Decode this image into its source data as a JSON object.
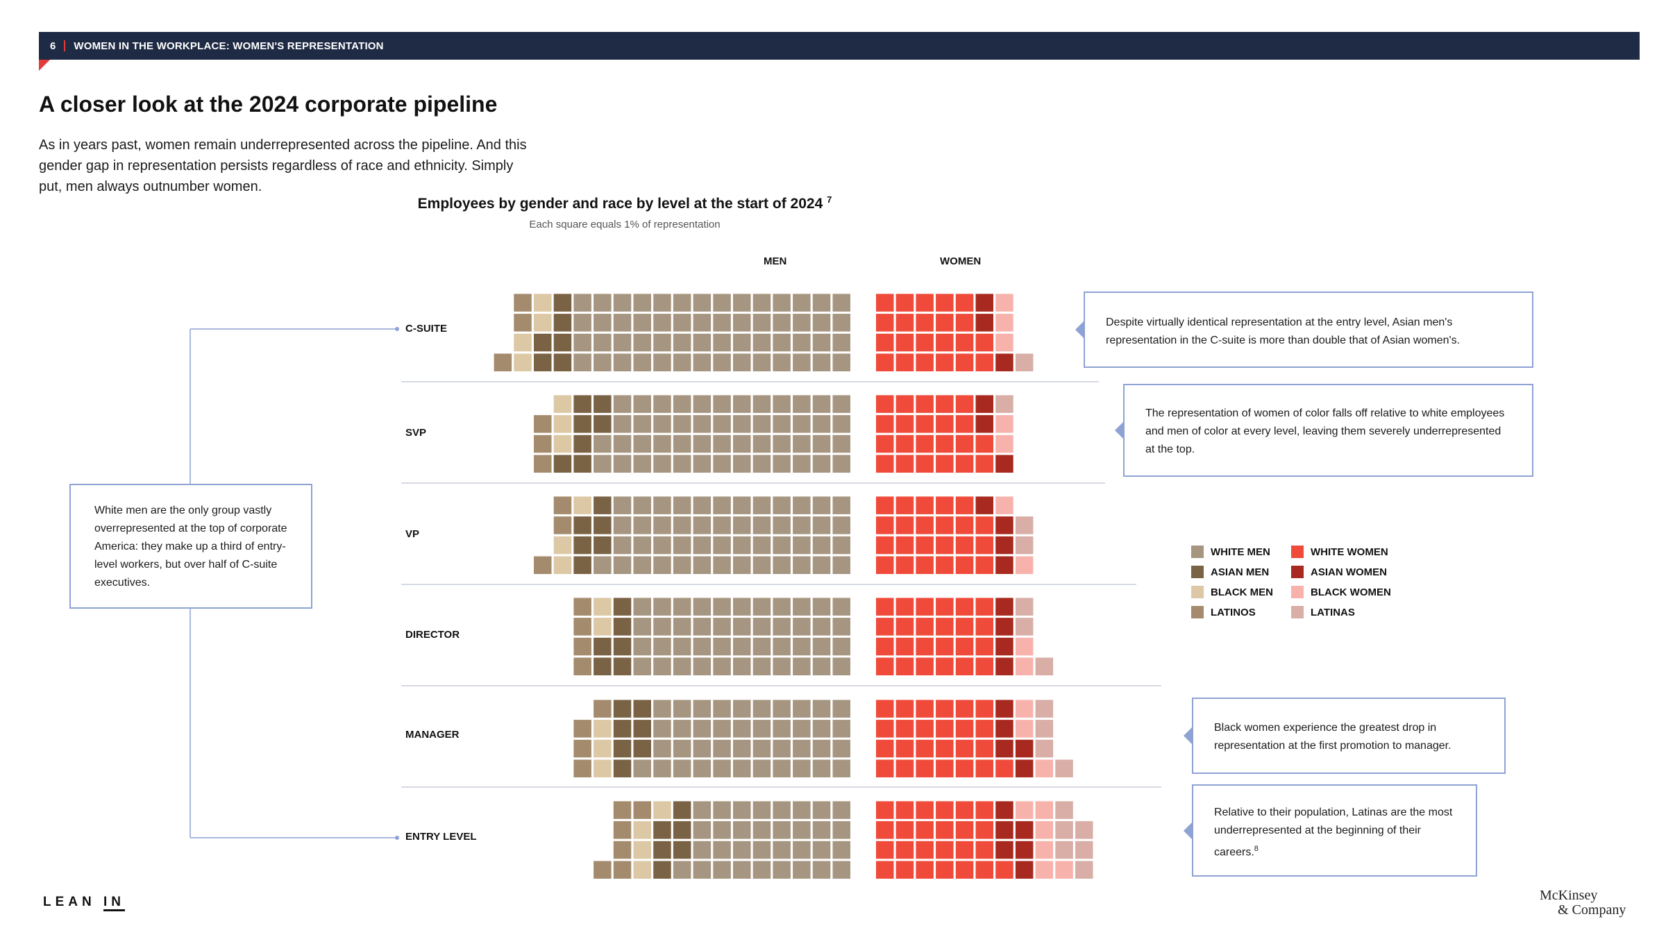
{
  "header": {
    "page_number": "6",
    "title": "WOMEN IN THE WORKPLACE: WOMEN'S REPRESENTATION"
  },
  "page_title": "A closer look at the 2024 corporate pipeline",
  "intro": "As in years past, women remain underrepresented across the pipeline. And this gender gap in representation persists regardless of race and ethnicity. Simply put, men always outnumber women.",
  "callouts": {
    "c_suite": "Despite virtually identical representation at the entry level, Asian men's representation in the C-suite is more than double that of Asian women's.",
    "svp": "The representation of women of color falls off relative to white employees and men of color at every level, leaving them severely underrepresented at the top.",
    "white_men": "White men are the only group vastly overrepresented at the top of corporate America: they make up a third of entry-level workers, but over half of C-suite executives.",
    "manager": "Black women experience the greatest drop in representation at the first promotion to manager.",
    "entry": "Relative to their population, Latinas are the most underrepresented at the beginning of their careers.",
    "entry_footnote": "8"
  },
  "logos": {
    "left_a": "LEAN ",
    "left_b": "IN",
    "right_line1": "McKinsey",
    "right_line2": "& Company"
  },
  "colors": {
    "white_men": "#a69580",
    "asian_men": "#7a6245",
    "black_men": "#dcc8a5",
    "latinos": "#a48b6d",
    "white_women": "#ef4a3a",
    "asian_women": "#a8291f",
    "black_women": "#f8b2ac",
    "latinas": "#d8aea7",
    "callout_border": "#8ea2d4",
    "header_bg": "#1f2a44",
    "accent": "#e23b3b"
  },
  "chart_data": {
    "type": "waffle",
    "title": "Employees by gender and race by level at the start of 2024",
    "title_footnote": "7",
    "subtitle": "Each square equals 1% of representation",
    "columns": {
      "men": "MEN",
      "women": "WOMEN"
    },
    "levels": [
      {
        "label": "C-SUITE",
        "men": {
          "latinos": 3,
          "black_men": 4,
          "asian_men": 6,
          "white_men": 56
        },
        "women": {
          "white_women": 22,
          "asian_women": 3,
          "black_women": 3,
          "latinas": 1
        }
      },
      {
        "label": "SVP",
        "men": {
          "latinos": 3,
          "black_men": 3,
          "asian_men": 7,
          "white_men": 50
        },
        "women": {
          "white_women": 22,
          "asian_women": 3,
          "black_women": 2,
          "latinas": 1
        }
      },
      {
        "label": "VP",
        "men": {
          "latinos": 3,
          "black_men": 3,
          "asian_men": 6,
          "white_men": 49
        },
        "women": {
          "white_women": 23,
          "asian_women": 4,
          "black_women": 2,
          "latinas": 2
        }
      },
      {
        "label": "DIRECTOR",
        "men": {
          "latinos": 4,
          "black_men": 2,
          "asian_men": 6,
          "white_men": 44
        },
        "women": {
          "white_women": 24,
          "asian_women": 4,
          "black_women": 2,
          "latinas": 3
        }
      },
      {
        "label": "MANAGER",
        "men": {
          "latinos": 4,
          "black_men": 3,
          "asian_men": 7,
          "white_men": 41
        },
        "women": {
          "white_women": 25,
          "asian_women": 5,
          "black_women": 3,
          "latinas": 4
        }
      },
      {
        "label": "ENTRY LEVEL",
        "men": {
          "latinos": 6,
          "black_men": 4,
          "asian_men": 6,
          "white_men": 33
        },
        "women": {
          "white_women": 25,
          "asian_women": 6,
          "black_women": 6,
          "latinas": 6
        }
      }
    ],
    "legend": [
      {
        "key": "white_men",
        "label": "WHITE MEN"
      },
      {
        "key": "white_women",
        "label": "WHITE WOMEN"
      },
      {
        "key": "asian_men",
        "label": "ASIAN MEN"
      },
      {
        "key": "asian_women",
        "label": "ASIAN WOMEN"
      },
      {
        "key": "black_men",
        "label": "BLACK MEN"
      },
      {
        "key": "black_women",
        "label": "BLACK WOMEN"
      },
      {
        "key": "latinos",
        "label": "LATINOS"
      },
      {
        "key": "latinas",
        "label": "LATINAS"
      }
    ]
  }
}
